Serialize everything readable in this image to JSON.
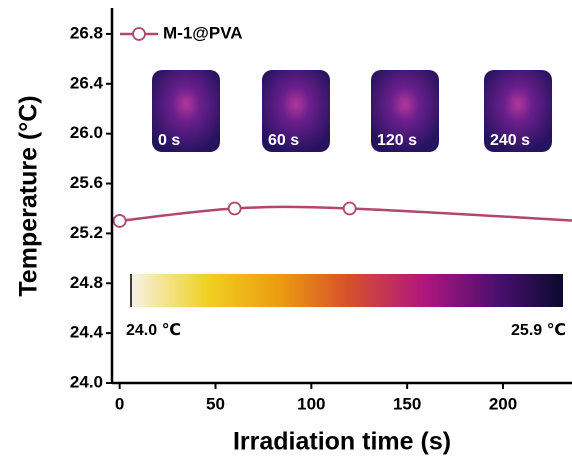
{
  "chart_data": {
    "type": "line",
    "xlabel": "Irradiation time (s)",
    "ylabel": "Temperature (°C)",
    "x": [
      0,
      60,
      120,
      240
    ],
    "series": [
      {
        "name": "M-1@PVA",
        "color": "#b0476f",
        "values": [
          25.3,
          25.4,
          25.4,
          25.3
        ]
      }
    ],
    "xlim": [
      -4,
      236
    ],
    "ylim": [
      24,
      27
    ],
    "xticks": [
      0,
      50,
      100,
      150,
      200
    ],
    "yticks": [
      {
        "value": 24,
        "label": "24.0"
      },
      24.4,
      24.8,
      25.2,
      25.6,
      {
        "value": 26,
        "label": "26.0"
      },
      26.4,
      26.8
    ],
    "legend": "top-left",
    "insets": [
      "0 s",
      "60 s",
      "120 s",
      "240 s"
    ],
    "colorbar": {
      "labels": [
        "24.0 ℃",
        "25.9 ℃"
      ]
    }
  }
}
